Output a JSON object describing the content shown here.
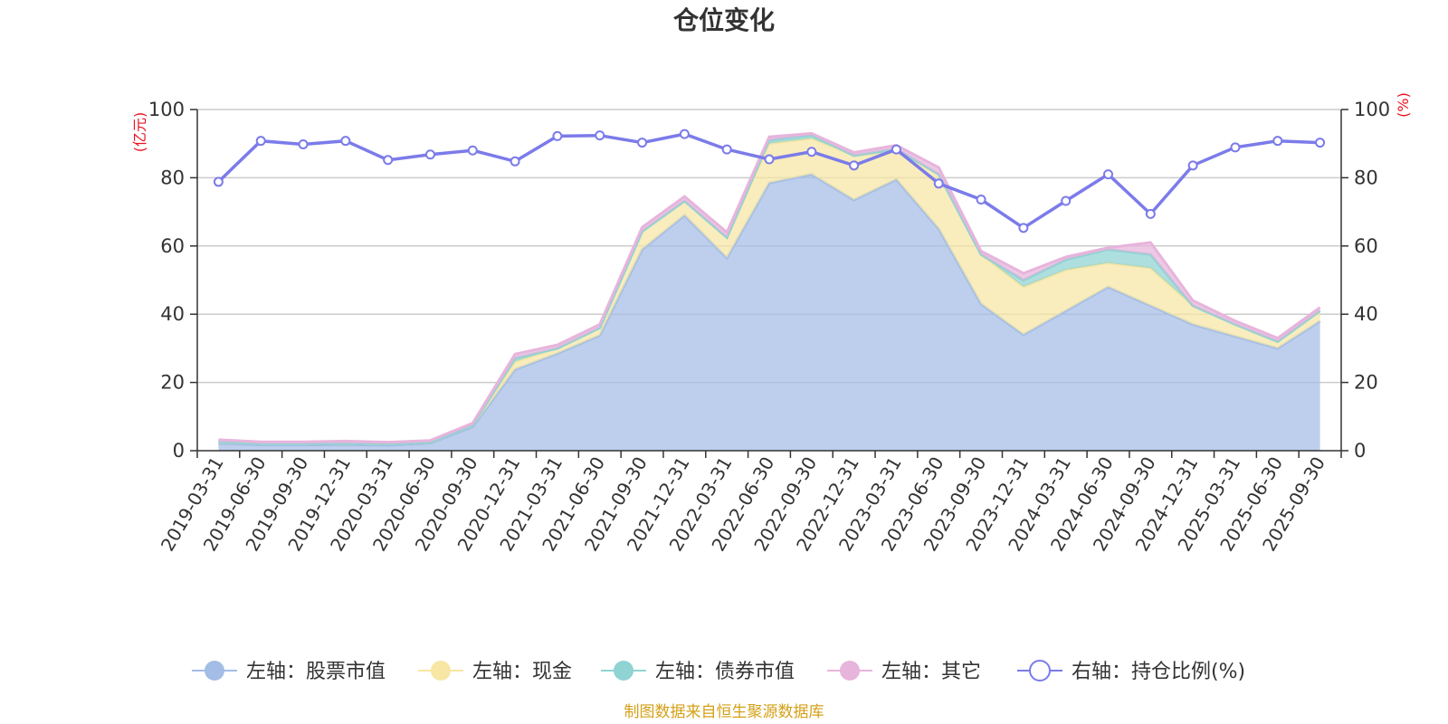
{
  "chart_data": {
    "type": "area",
    "title": "仓位变化",
    "left_axis_unit": "(亿元)",
    "right_axis_unit": "(%)",
    "ylim_left": [
      0,
      100
    ],
    "ylim_right": [
      0,
      100
    ],
    "y_ticks": [
      "0",
      "20",
      "40",
      "60",
      "80",
      "100"
    ],
    "categories": [
      "2019-03-31",
      "2019-06-30",
      "2019-09-30",
      "2019-12-31",
      "2020-03-31",
      "2020-06-30",
      "2020-09-30",
      "2020-12-31",
      "2021-03-31",
      "2021-06-30",
      "2021-09-30",
      "2021-12-31",
      "2022-03-31",
      "2022-06-30",
      "2022-09-30",
      "2022-12-31",
      "2023-03-31",
      "2023-06-30",
      "2023-09-30",
      "2023-12-31",
      "2024-03-31",
      "2024-06-30",
      "2024-09-30",
      "2024-12-31",
      "2025-03-31",
      "2025-06-30",
      "2025-09-30"
    ],
    "series": [
      {
        "name": "左轴：股票市值",
        "axis": "left",
        "stacked": true,
        "color": "#a3bde6",
        "values": [
          2.2,
          1.7,
          1.7,
          1.8,
          1.6,
          2.2,
          7.0,
          23.8,
          28.5,
          33.8,
          59.0,
          69.0,
          56.5,
          78.5,
          81.0,
          73.5,
          79.5,
          65.0,
          43.0,
          34.0,
          41.0,
          48.0,
          42.5,
          37.0,
          33.5,
          30.0,
          38.0
        ]
      },
      {
        "name": "左轴：现金",
        "axis": "left",
        "stacked": true,
        "color": "#f7e6a4",
        "values": [
          0.5,
          0.4,
          0.4,
          0.4,
          0.4,
          0.3,
          0.5,
          2.3,
          1.5,
          2.2,
          5.3,
          4.2,
          6.0,
          11.5,
          10.5,
          13.0,
          8.0,
          16.0,
          14.5,
          14.0,
          12.0,
          7.0,
          11.0,
          5.5,
          3.5,
          2.0,
          3.0
        ]
      },
      {
        "name": "左轴：债券市值",
        "axis": "left",
        "stacked": true,
        "color": "#8fd3d3",
        "values": [
          0,
          0,
          0,
          0,
          0,
          0,
          0,
          1.0,
          0,
          0,
          0,
          0,
          0,
          1.0,
          1.0,
          0,
          1.0,
          0,
          0,
          2.0,
          3.0,
          4.0,
          4.0,
          0,
          0,
          0,
          0
        ]
      },
      {
        "name": "左轴：其它",
        "axis": "left",
        "stacked": true,
        "color": "#e7b4dc",
        "values": [
          0.5,
          0.5,
          0.5,
          0.6,
          0.5,
          0.5,
          0.6,
          1.2,
          1.0,
          1.0,
          1.2,
          1.3,
          1.5,
          1.0,
          0.5,
          0.9,
          1.0,
          2.0,
          1.0,
          2.0,
          0.8,
          0.5,
          3.5,
          1.5,
          1.0,
          1.0,
          1.0
        ]
      },
      {
        "name": "右轴：持仓比例(%)",
        "axis": "right",
        "type": "line",
        "color": "#7b7bea",
        "values": [
          78.8,
          90.8,
          89.8,
          90.8,
          85.2,
          86.8,
          88.0,
          84.8,
          92.2,
          92.4,
          90.3,
          92.8,
          88.3,
          85.4,
          87.6,
          83.6,
          88.3,
          78.3,
          73.6,
          65.3,
          73.2,
          81.0,
          69.4,
          83.6,
          88.9,
          90.8,
          90.3
        ]
      }
    ],
    "legend_position": "bottom"
  },
  "footer": {
    "source": "制图数据来自恒生聚源数据库"
  }
}
